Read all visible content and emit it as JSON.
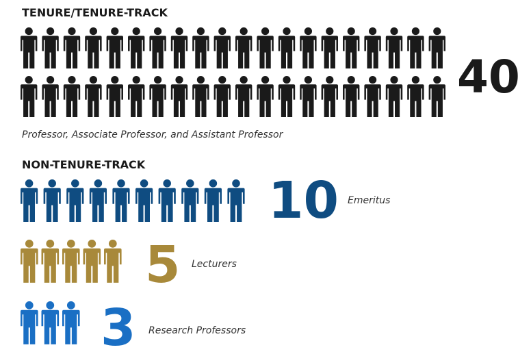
{
  "chart_data": {
    "type": "pictogram",
    "groups": [
      {
        "heading": "TENURE/TENURE-TRACK",
        "value": 40,
        "color": "#1a1a1a",
        "note": "Professor, Associate Professor, and Assistant Professor"
      },
      {
        "heading": "NON-TENURE-TRACK",
        "value": 10,
        "color": "#0f4c81",
        "name": "Emeritus"
      },
      {
        "value": 5,
        "color": "#a8893a",
        "name": "Lecturers"
      },
      {
        "value": 3,
        "color": "#1a6fc4",
        "name": "Research Professors"
      }
    ]
  }
}
